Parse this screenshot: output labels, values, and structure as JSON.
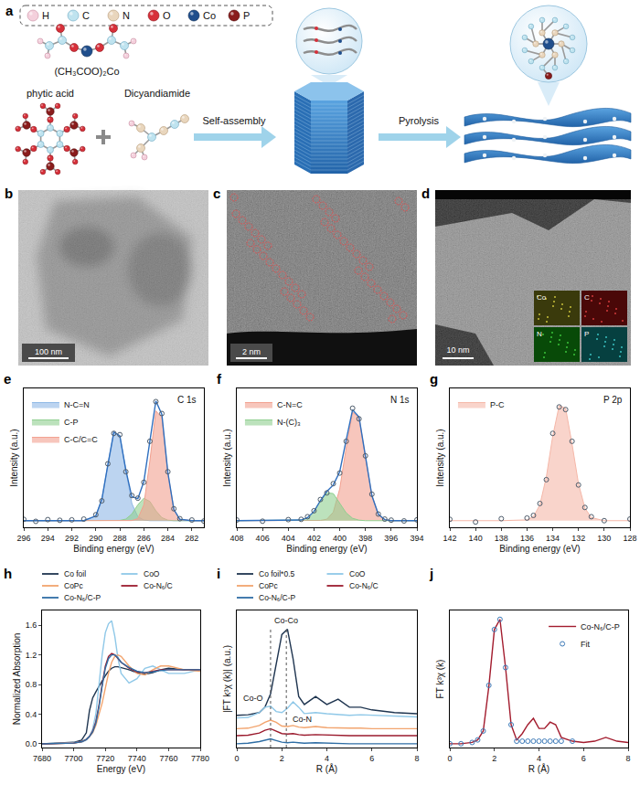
{
  "schematic": {
    "panel": "a",
    "elements": [
      "H",
      "C",
      "N",
      "O",
      "Co",
      "P"
    ],
    "precursors": [
      "(CH₃COO)₂Co",
      "phytic acid",
      "Dicyandiamide"
    ],
    "steps": [
      "Self-assembly",
      "Pyrolysis"
    ]
  },
  "images": [
    {
      "panel": "b",
      "scale_bar": "100 nm"
    },
    {
      "panel": "c",
      "scale_bar": "2 nm"
    },
    {
      "panel": "d",
      "scale_bar": "10 nm",
      "maps": [
        "Co",
        "C",
        "N",
        "P"
      ]
    }
  ],
  "chart_data": [
    {
      "panel": "e",
      "type": "line",
      "title": "C 1s",
      "x_label": "Binding energy (eV)",
      "y_label": "Intensity (a.u.)",
      "x": [
        296,
        295,
        294,
        293,
        292,
        291,
        290,
        289.5,
        289,
        288.5,
        288,
        287.5,
        287,
        286.5,
        286,
        285.5,
        285,
        284.5,
        284,
        283.5,
        283,
        282,
        281
      ],
      "xlim": [
        296,
        281
      ],
      "xticks": [
        296,
        294,
        292,
        290,
        288,
        286,
        284,
        282
      ],
      "ylim": [
        -0.05,
        1.0
      ],
      "tick_labels": "x",
      "legend": "top left",
      "series": [
        {
          "name": "N-C=N",
          "type": "area",
          "color": "#8fb8e6",
          "values": [
            0,
            0,
            0,
            0,
            0,
            0,
            0.036,
            0.16,
            0.42,
            0.67,
            0.64,
            0.37,
            0.13,
            0.03,
            0.005,
            0,
            0,
            0,
            0,
            0,
            0,
            0,
            0
          ]
        },
        {
          "name": "C-P",
          "type": "area",
          "color": "#8fcf8f",
          "values": [
            0,
            0,
            0,
            0,
            0,
            0,
            0,
            0,
            0,
            0,
            0.002,
            0.012,
            0.05,
            0.12,
            0.17,
            0.145,
            0.075,
            0.023,
            0.004,
            0,
            0,
            0,
            0
          ]
        },
        {
          "name": "C-C/C=C",
          "type": "area",
          "color": "#f2a08f",
          "values": [
            0,
            0,
            0,
            0,
            0,
            0,
            0,
            0,
            0,
            0,
            0,
            0,
            0.001,
            0.016,
            0.12,
            0.45,
            0.83,
            0.78,
            0.36,
            0.084,
            0.01,
            0,
            0
          ]
        },
        {
          "type": "line",
          "color": "#2f6fbf",
          "values": [
            0,
            0,
            0,
            0,
            0,
            0,
            0.036,
            0.16,
            0.42,
            0.67,
            0.642,
            0.382,
            0.181,
            0.166,
            0.295,
            0.595,
            0.905,
            0.803,
            0.364,
            0.084,
            0.01,
            0,
            0
          ]
        },
        {
          "type": "scatter",
          "marker": "open circle",
          "color": "#4d5b6a",
          "values": [
            0.01,
            -0.005,
            0.008,
            0.003,
            0.006,
            0.012,
            0.045,
            0.15,
            0.43,
            0.66,
            0.65,
            0.37,
            0.19,
            0.17,
            0.29,
            0.6,
            0.9,
            0.81,
            0.37,
            0.09,
            0.015,
            0.005,
            -0.003
          ]
        }
      ]
    },
    {
      "panel": "f",
      "type": "line",
      "title": "N 1s",
      "x_label": "Binding energy (eV)",
      "y_label": "Intensity (a.u.)",
      "x": [
        408,
        406,
        404,
        403,
        402.5,
        402,
        401.5,
        401,
        400.5,
        400,
        399.5,
        399,
        398.5,
        398,
        397.5,
        397,
        396.5,
        396,
        395,
        394
      ],
      "xlim": [
        408,
        394
      ],
      "xticks": [
        408,
        406,
        404,
        402,
        400,
        398,
        396,
        394
      ],
      "ylim": [
        -0.05,
        1.0
      ],
      "tick_labels": "x",
      "legend": "top left",
      "series": [
        {
          "name": "C-N=C",
          "type": "area",
          "color": "#f2a08f",
          "values": [
            0,
            0,
            0,
            0,
            0,
            0,
            0.002,
            0.011,
            0.065,
            0.24,
            0.55,
            0.82,
            0.78,
            0.48,
            0.19,
            0.048,
            0.008,
            0,
            0,
            0
          ]
        },
        {
          "name": "N-(C)₃",
          "type": "area",
          "color": "#8fcf8f",
          "values": [
            0,
            0,
            0.001,
            0.005,
            0.023,
            0.07,
            0.15,
            0.21,
            0.205,
            0.13,
            0.059,
            0.018,
            0.004,
            0,
            0,
            0,
            0,
            0,
            0,
            0
          ]
        },
        {
          "type": "line",
          "color": "#2f6fbf",
          "values": [
            0,
            0,
            0.001,
            0.005,
            0.023,
            0.07,
            0.152,
            0.221,
            0.27,
            0.37,
            0.609,
            0.838,
            0.784,
            0.48,
            0.19,
            0.048,
            0.008,
            0,
            0,
            0
          ]
        },
        {
          "type": "scatter",
          "marker": "open circle",
          "color": "#4d5b6a",
          "values": [
            0.005,
            -0.004,
            0.008,
            0.01,
            0.03,
            0.075,
            0.16,
            0.21,
            0.28,
            0.36,
            0.6,
            0.85,
            0.77,
            0.49,
            0.2,
            0.05,
            0.012,
            0.004,
            -0.002,
            0.006
          ]
        }
      ]
    },
    {
      "panel": "g",
      "type": "line",
      "title": "P 2p",
      "x_label": "Binding energy (eV)",
      "y_label": "Intensity (a.u.)",
      "x": [
        142,
        140,
        138,
        136,
        135.5,
        135,
        134.5,
        134,
        133.5,
        133,
        132.5,
        132,
        131.5,
        131,
        130,
        128
      ],
      "xlim": [
        142,
        128
      ],
      "xticks": [
        142,
        140,
        138,
        136,
        134,
        132,
        130,
        128
      ],
      "ylim": [
        -0.05,
        1.0
      ],
      "tick_labels": "x",
      "legend": "top left",
      "series": [
        {
          "name": "P-C",
          "type": "area",
          "color": "#f5b7a8",
          "values": [
            0,
            0,
            0,
            0.006,
            0.03,
            0.12,
            0.33,
            0.64,
            0.87,
            0.85,
            0.58,
            0.28,
            0.095,
            0.023,
            0,
            0
          ]
        },
        {
          "type": "scatter",
          "marker": "open circle",
          "color": "#4d5b6a",
          "values": [
            0.01,
            -0.01,
            0.015,
            0.02,
            0.04,
            0.13,
            0.31,
            0.66,
            0.86,
            0.84,
            0.6,
            0.27,
            0.1,
            0.03,
            0.0,
            0.012
          ]
        }
      ]
    },
    {
      "panel": "h",
      "type": "line",
      "x_label": "Energy (eV)",
      "y_label": "Normalized Absorption",
      "x": [
        7680,
        7700,
        7705,
        7708,
        7710,
        7712,
        7714,
        7716,
        7718,
        7720,
        7722,
        7724,
        7726,
        7728,
        7730,
        7735,
        7740,
        7745,
        7750,
        7755,
        7760,
        7770,
        7780
      ],
      "xlim": [
        7680,
        7780
      ],
      "xticks": [
        7680,
        7700,
        7720,
        7740,
        7760,
        7780
      ],
      "ylim": [
        -0.05,
        1.8
      ],
      "yticks": [
        {
          "value": 0,
          "label": "0.0"
        },
        0.4,
        0.8,
        1.2,
        1.6
      ],
      "legend": "top",
      "series": [
        {
          "name": "Co foil",
          "color": "#1f3550",
          "values": [
            0,
            0.02,
            0.05,
            0.15,
            0.45,
            0.62,
            0.7,
            0.78,
            0.85,
            0.92,
            0.98,
            1.02,
            1.04,
            1.04,
            1.03,
            1.0,
            0.96,
            0.94,
            0.96,
            1.0,
            1.02,
            1.0,
            1.0
          ]
        },
        {
          "name": "CoO",
          "color": "#8fc8e8",
          "values": [
            0,
            0.01,
            0.02,
            0.05,
            0.1,
            0.2,
            0.4,
            0.8,
            1.2,
            1.5,
            1.62,
            1.66,
            1.45,
            1.15,
            0.95,
            0.82,
            0.88,
            1.02,
            1.05,
            1.0,
            0.95,
            0.95,
            1.0
          ]
        },
        {
          "name": "CoPc",
          "color": "#f2a46e",
          "values": [
            0,
            0.01,
            0.03,
            0.06,
            0.1,
            0.15,
            0.25,
            0.4,
            0.55,
            0.75,
            0.95,
            1.1,
            1.18,
            1.2,
            1.18,
            1.05,
            0.95,
            0.93,
            1.0,
            1.05,
            1.05,
            1.0,
            0.98
          ]
        },
        {
          "name": "Co-N₆/C",
          "color": "#9b1b2e",
          "values": [
            0,
            0.01,
            0.03,
            0.06,
            0.1,
            0.17,
            0.3,
            0.52,
            0.8,
            1.05,
            1.18,
            1.22,
            1.2,
            1.15,
            1.1,
            1.02,
            0.97,
            0.96,
            0.98,
            1.0,
            1.0,
            1.0,
            1.0
          ]
        },
        {
          "name": "Co-N₆/C-P",
          "color": "#2f6ea5",
          "values": [
            0,
            0.01,
            0.03,
            0.06,
            0.1,
            0.16,
            0.28,
            0.5,
            0.78,
            1.02,
            1.15,
            1.2,
            1.2,
            1.16,
            1.1,
            1.03,
            0.98,
            0.96,
            0.97,
            0.99,
            1.0,
            1.0,
            1.0
          ]
        }
      ]
    },
    {
      "panel": "i",
      "type": "line",
      "x_label": "R (Å)",
      "y_label": "|FT k³χ (k)| (a.u.)",
      "x": [
        0,
        0.5,
        1.0,
        1.25,
        1.5,
        1.75,
        2.0,
        2.25,
        2.5,
        2.75,
        3.0,
        3.5,
        4.0,
        4.5,
        5.0,
        5.5,
        6.0,
        7.0,
        8.0
      ],
      "xlim": [
        0,
        8
      ],
      "xticks": [
        0,
        2,
        4,
        6,
        8
      ],
      "ylim": [
        -0.05,
        2.5
      ],
      "tick_labels": "x",
      "legend": "top",
      "reference_x": [
        1.5,
        2.2
      ],
      "annotations": [
        {
          "text": "Co-Co",
          "x": 2.2,
          "y": 2.32
        },
        {
          "text": "Co-O",
          "x": 0.75,
          "y": 0.86
        },
        {
          "text": "Co-N",
          "x": 2.9,
          "y": 0.47
        }
      ],
      "series": [
        {
          "name": "Co foil*0.5",
          "color": "#1f3550",
          "values": [
            0.55,
            0.56,
            0.6,
            0.7,
            0.95,
            1.5,
            2.05,
            2.15,
            1.6,
            0.9,
            0.75,
            0.9,
            0.75,
            0.85,
            0.7,
            0.7,
            0.65,
            0.6,
            0.58
          ]
        },
        {
          "name": "CoO",
          "color": "#8fc8e8",
          "values": [
            0.5,
            0.51,
            0.6,
            0.7,
            0.72,
            0.62,
            0.6,
            0.68,
            0.8,
            0.7,
            0.58,
            0.6,
            0.58,
            0.56,
            0.55,
            0.56,
            0.55,
            0.53,
            0.52
          ]
        },
        {
          "name": "CoPc",
          "color": "#f2a46e",
          "values": [
            0.3,
            0.31,
            0.36,
            0.42,
            0.46,
            0.42,
            0.35,
            0.34,
            0.36,
            0.33,
            0.32,
            0.34,
            0.32,
            0.31,
            0.31,
            0.31,
            0.3,
            0.3,
            0.3
          ]
        },
        {
          "name": "Co-N₆/C",
          "color": "#9b1b2e",
          "values": [
            0.17,
            0.18,
            0.22,
            0.27,
            0.3,
            0.26,
            0.21,
            0.2,
            0.21,
            0.19,
            0.18,
            0.19,
            0.18,
            0.18,
            0.17,
            0.17,
            0.17,
            0.17,
            0.17
          ]
        },
        {
          "name": "Co-N₆/C-P",
          "color": "#2f6ea5",
          "values": [
            0.02,
            0.03,
            0.06,
            0.09,
            0.11,
            0.08,
            0.05,
            0.04,
            0.05,
            0.04,
            0.03,
            0.04,
            0.03,
            0.03,
            0.02,
            0.02,
            0.02,
            0.02,
            0.02
          ]
        }
      ]
    },
    {
      "panel": "j",
      "type": "line",
      "x_label": "R (Å)",
      "y_label": "FT k³χ (k)",
      "x": [
        0,
        0.5,
        1,
        1.25,
        1.5,
        1.75,
        2.0,
        2.25,
        2.5,
        2.75,
        3.0,
        3.25,
        3.5,
        3.75,
        4.0,
        4.25,
        4.5,
        4.75,
        5.0,
        5.5,
        6.0,
        6.5,
        7.0,
        7.5,
        8.0
      ],
      "xlim": [
        0,
        8
      ],
      "xticks": [
        0,
        2,
        4,
        6,
        8
      ],
      "ylim": [
        -0.03,
        1.05
      ],
      "tick_labels": "x",
      "legend": "top right",
      "series": [
        {
          "name": "Co-N₆/C-P",
          "type": "line",
          "color": "#a31c2e",
          "values": [
            0,
            0,
            0.01,
            0.03,
            0.1,
            0.45,
            0.9,
            0.98,
            0.6,
            0.15,
            0.03,
            0.08,
            0.15,
            0.2,
            0.12,
            0.12,
            0.17,
            0.15,
            0.05,
            0.02,
            0.01,
            0.02,
            0.05,
            0.02,
            0.01
          ]
        },
        {
          "name": "Fit",
          "type": "scatter",
          "marker": "open circle",
          "color": "#3d7ab8",
          "values": [
            0,
            0,
            0.01,
            0.03,
            0.1,
            0.46,
            0.9,
            0.98,
            0.6,
            0.15,
            0.02,
            0.02,
            0.02,
            0.02,
            0.02,
            0.02,
            0.02,
            0.02,
            0.02,
            0.02,
            null,
            null,
            null,
            null,
            null
          ]
        }
      ]
    }
  ]
}
